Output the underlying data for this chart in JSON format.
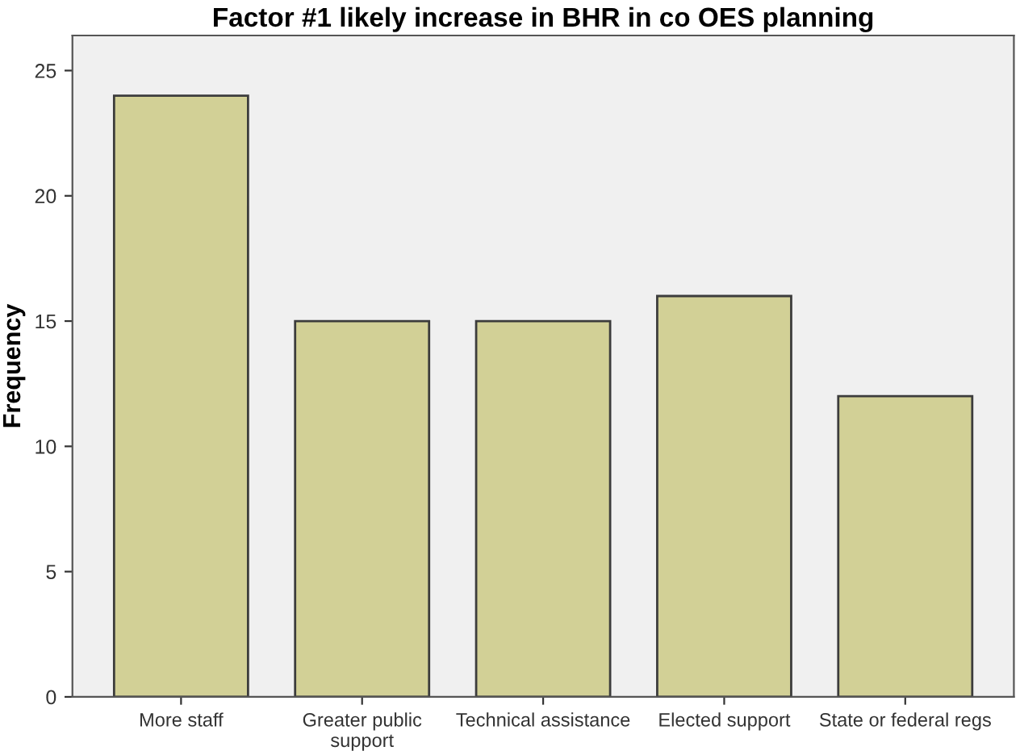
{
  "chart_data": {
    "type": "bar",
    "title": "Factor #1 likely increase in BHR in co OES planning",
    "ylabel": "Frequency",
    "categories": [
      "More staff",
      "Greater public\nsupport",
      "Technical assistance",
      "Elected support",
      "State or federal regs"
    ],
    "values": [
      24,
      15,
      15,
      16,
      12
    ],
    "color": "#d2d096",
    "ylim": [
      0,
      26.4
    ],
    "yticks": [
      0,
      5,
      10,
      15,
      20,
      25
    ],
    "grid": false,
    "legend": false
  }
}
